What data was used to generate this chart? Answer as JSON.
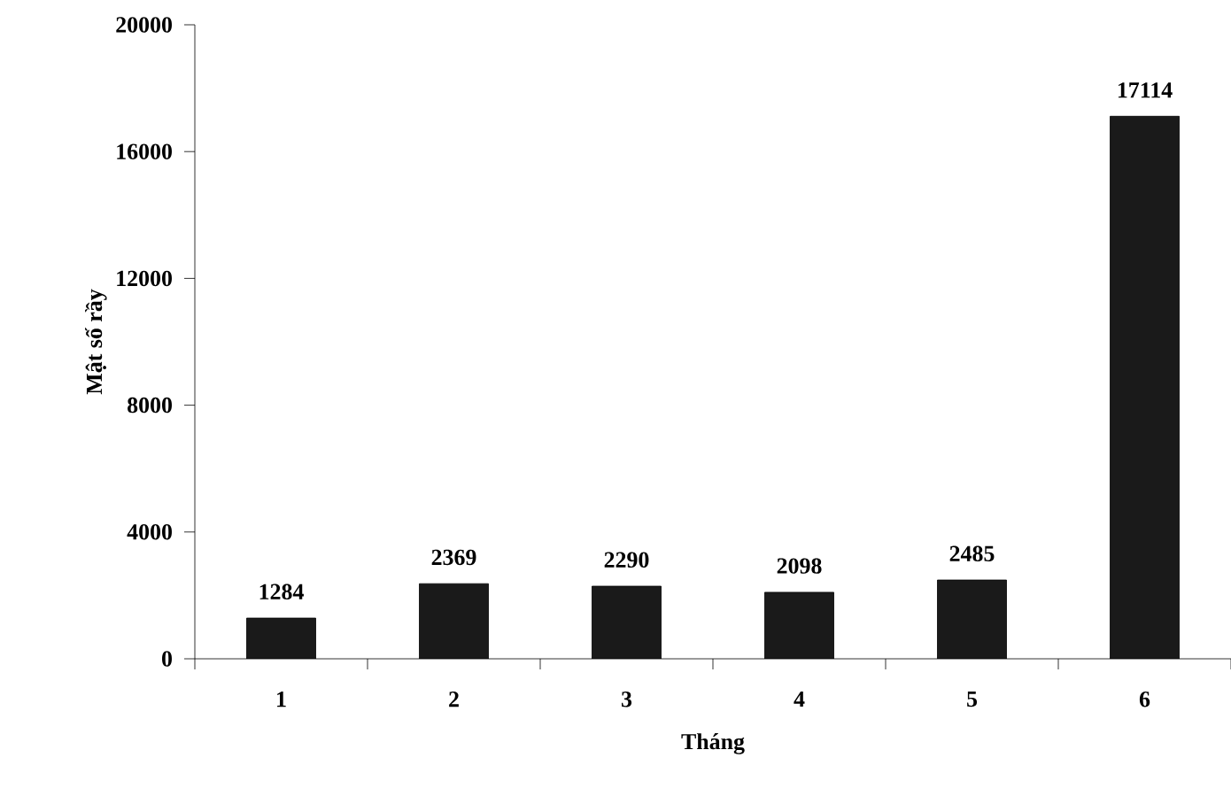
{
  "chart_data": {
    "type": "bar",
    "xlabel": "Tháng",
    "ylabel": "Mật số rầy",
    "categories": [
      "1",
      "2",
      "3",
      "4",
      "5",
      "6"
    ],
    "values": [
      1284,
      2369,
      2290,
      2098,
      2485,
      17114
    ],
    "color": "#1a1a1a",
    "ylim": [
      0,
      20000
    ],
    "yticks": [
      0,
      4000,
      8000,
      12000,
      16000,
      20000
    ],
    "data_labels": true
  }
}
